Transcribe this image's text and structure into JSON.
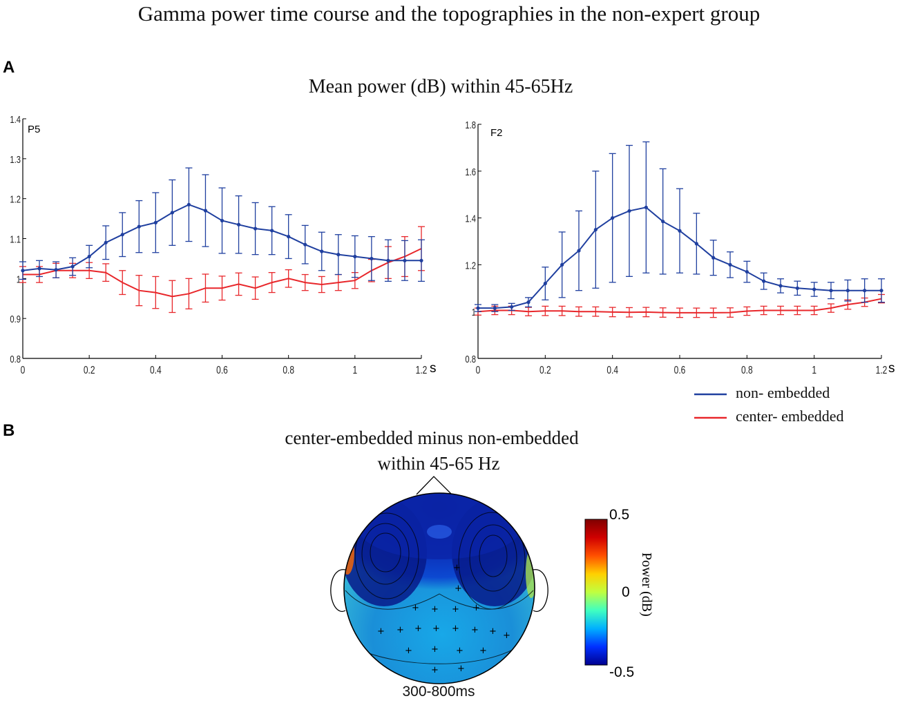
{
  "title": "Gamma power time course and the topographies in the non-expert group",
  "panel_a": {
    "label": "A",
    "title": "Mean  power (dB) within 45-65Hz"
  },
  "panel_b": {
    "label": "B",
    "title_line1": "center-embedded  minus  non-embedded",
    "title_line2": "within  45-65 Hz",
    "time_window": "300-800ms",
    "colorbar": {
      "label": "Power (dB)",
      "max_label": "0.5",
      "mid_label": "0",
      "min_label": "-0.5",
      "colors": [
        "#00008f",
        "#0030ff",
        "#00b0ff",
        "#40ffc0",
        "#c0ff40",
        "#ffd000",
        "#ff5000",
        "#d00000",
        "#800000"
      ]
    }
  },
  "legend": {
    "items": [
      {
        "label": "non- embedded",
        "color": "#1f3f9f"
      },
      {
        "label": "center- embedded",
        "color": "#e8262a"
      }
    ]
  },
  "chart_data": [
    {
      "type": "line",
      "title": "P5",
      "xlabel": "s",
      "ylabel": "",
      "x": [
        0,
        0.05,
        0.1,
        0.15,
        0.2,
        0.25,
        0.3,
        0.35,
        0.4,
        0.45,
        0.5,
        0.55,
        0.6,
        0.65,
        0.7,
        0.75,
        0.8,
        0.85,
        0.9,
        0.95,
        1.0,
        1.05,
        1.1,
        1.15,
        1.2
      ],
      "xlim": [
        0,
        1.2
      ],
      "ylim": [
        0.8,
        1.4
      ],
      "xticks": [
        "0",
        "0.2",
        "0.4",
        "0.6",
        "0.8",
        "1",
        "1.2"
      ],
      "yticks": [
        "0.8",
        "0.9",
        "1",
        "1.1",
        "1.2",
        "1.3",
        "1.4"
      ],
      "series": [
        {
          "name": "non- embedded",
          "color": "#1f3f9f",
          "markers": true,
          "values": [
            1.02,
            1.025,
            1.022,
            1.03,
            1.055,
            1.09,
            1.11,
            1.13,
            1.14,
            1.165,
            1.185,
            1.17,
            1.145,
            1.135,
            1.125,
            1.12,
            1.105,
            1.085,
            1.068,
            1.06,
            1.055,
            1.05,
            1.045,
            1.045,
            1.045
          ],
          "errors": [
            0.022,
            0.02,
            0.02,
            0.022,
            0.028,
            0.042,
            0.055,
            0.065,
            0.075,
            0.082,
            0.092,
            0.09,
            0.082,
            0.072,
            0.065,
            0.06,
            0.055,
            0.048,
            0.048,
            0.05,
            0.052,
            0.055,
            0.052,
            0.05,
            0.052
          ]
        },
        {
          "name": "center- embedded",
          "color": "#e8262a",
          "markers": false,
          "values": [
            1.01,
            1.01,
            1.02,
            1.02,
            1.02,
            1.015,
            0.99,
            0.97,
            0.965,
            0.955,
            0.962,
            0.976,
            0.976,
            0.986,
            0.976,
            0.99,
            1.0,
            0.99,
            0.985,
            0.99,
            0.995,
            1.02,
            1.04,
            1.055,
            1.075
          ],
          "errors": [
            0.02,
            0.02,
            0.018,
            0.018,
            0.02,
            0.022,
            0.03,
            0.038,
            0.04,
            0.04,
            0.038,
            0.035,
            0.03,
            0.028,
            0.028,
            0.025,
            0.022,
            0.02,
            0.02,
            0.02,
            0.02,
            0.028,
            0.04,
            0.05,
            0.055
          ]
        }
      ]
    },
    {
      "type": "line",
      "title": "F2",
      "xlabel": "s",
      "ylabel": "",
      "x": [
        0,
        0.05,
        0.1,
        0.15,
        0.2,
        0.25,
        0.3,
        0.35,
        0.4,
        0.45,
        0.5,
        0.55,
        0.6,
        0.65,
        0.7,
        0.75,
        0.8,
        0.85,
        0.9,
        0.95,
        1.0,
        1.05,
        1.1,
        1.15,
        1.2
      ],
      "xlim": [
        0,
        1.2
      ],
      "ylim": [
        0.8,
        1.8
      ],
      "xticks": [
        "0",
        "0.2",
        "0.4",
        "0.6",
        "0.8",
        "1",
        "1.2"
      ],
      "yticks": [
        "0.8",
        "1",
        "1.2",
        "1.4",
        "1.6",
        "1.8"
      ],
      "series": [
        {
          "name": "non- embedded",
          "color": "#1f3f9f",
          "markers": true,
          "values": [
            1.015,
            1.015,
            1.02,
            1.04,
            1.12,
            1.2,
            1.26,
            1.35,
            1.4,
            1.43,
            1.445,
            1.385,
            1.345,
            1.29,
            1.23,
            1.2,
            1.17,
            1.13,
            1.11,
            1.1,
            1.095,
            1.09,
            1.09,
            1.09,
            1.09
          ],
          "errors": [
            0.015,
            0.015,
            0.015,
            0.02,
            0.07,
            0.14,
            0.17,
            0.25,
            0.275,
            0.28,
            0.28,
            0.225,
            0.18,
            0.13,
            0.075,
            0.055,
            0.045,
            0.035,
            0.03,
            0.03,
            0.03,
            0.035,
            0.045,
            0.05,
            0.05
          ]
        },
        {
          "name": "center- embedded",
          "color": "#e8262a",
          "markers": false,
          "values": [
            1.0,
            1.005,
            1.005,
            1.0,
            1.003,
            1.003,
            1.0,
            1.0,
            0.998,
            0.997,
            0.998,
            0.996,
            0.995,
            0.995,
            0.995,
            0.996,
            1.002,
            1.005,
            1.005,
            1.005,
            1.005,
            1.015,
            1.03,
            1.04,
            1.055
          ],
          "errors": [
            0.015,
            0.018,
            0.018,
            0.018,
            0.02,
            0.02,
            0.02,
            0.02,
            0.02,
            0.02,
            0.02,
            0.02,
            0.02,
            0.02,
            0.02,
            0.02,
            0.018,
            0.018,
            0.018,
            0.018,
            0.018,
            0.018,
            0.02,
            0.018,
            0.018
          ]
        }
      ]
    }
  ]
}
